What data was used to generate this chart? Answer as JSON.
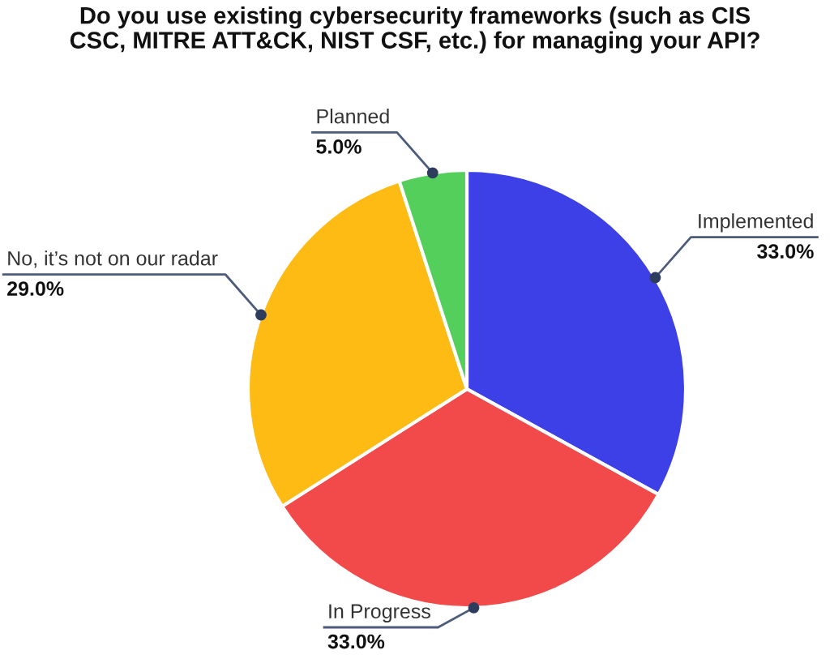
{
  "chart_data": {
    "type": "pie",
    "title": "Do you use existing cybersecurity frameworks (such as CIS\nCSC, MITRE ATT&CK, NIST CSF, etc.) for managing your API?",
    "categories": [
      "Implemented",
      "In Progress",
      "No, it’s not on our radar",
      "Planned"
    ],
    "values": [
      33,
      33,
      29,
      5
    ],
    "colors": [
      "#3d40e6",
      "#f24a4a",
      "#fdbb13",
      "#55cf5b"
    ],
    "value_labels": [
      "33.0%",
      "33.0%",
      "29.0%",
      "5.0%"
    ]
  }
}
